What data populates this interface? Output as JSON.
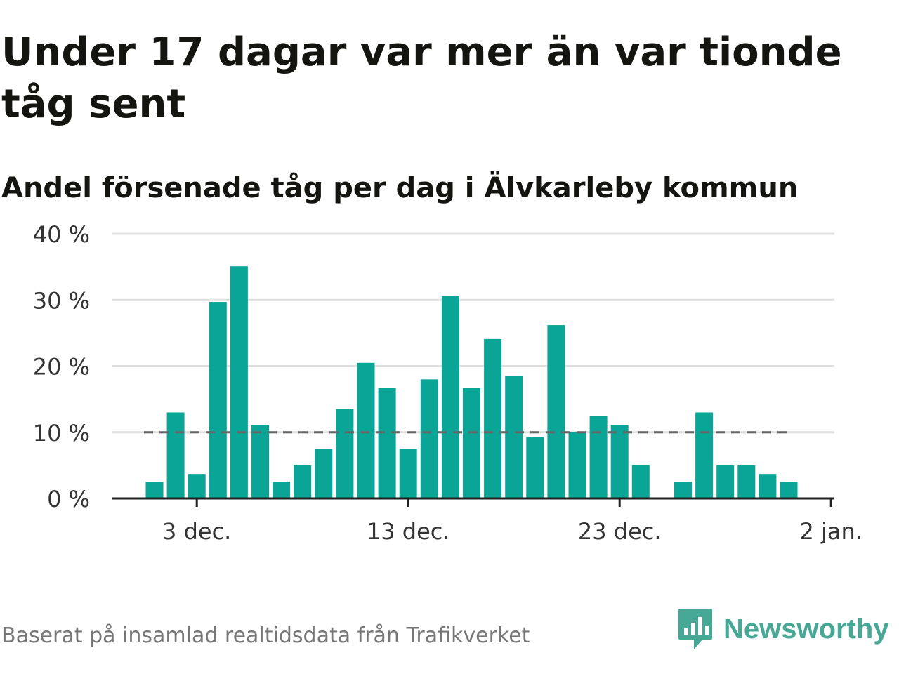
{
  "title": "Under 17 dagar var mer än var tionde tåg sent",
  "subtitle": "Andel försenade tåg per dag i Älvkarleby kommun",
  "source": "Baserat på insamlad realtidsdata från Trafikverket",
  "brand": {
    "name": "Newsworthy",
    "icon": "newsworthy-logo-icon",
    "color": "#46a895"
  },
  "chart_data": {
    "type": "bar",
    "x_start": "2023-12-01",
    "x": [
      "2023-12-01",
      "2023-12-02",
      "2023-12-03",
      "2023-12-04",
      "2023-12-05",
      "2023-12-06",
      "2023-12-07",
      "2023-12-08",
      "2023-12-09",
      "2023-12-10",
      "2023-12-11",
      "2023-12-12",
      "2023-12-13",
      "2023-12-14",
      "2023-12-15",
      "2023-12-16",
      "2023-12-17",
      "2023-12-18",
      "2023-12-19",
      "2023-12-20",
      "2023-12-21",
      "2023-12-22",
      "2023-12-23",
      "2023-12-24",
      "2023-12-25",
      "2023-12-26",
      "2023-12-27",
      "2023-12-28",
      "2023-12-29",
      "2023-12-30",
      "2023-12-31"
    ],
    "values": [
      2.5,
      13,
      3.7,
      29.7,
      35.1,
      11.1,
      2.5,
      5,
      7.5,
      13.5,
      20.5,
      16.7,
      7.5,
      18,
      30.6,
      16.7,
      24.1,
      18.5,
      9.3,
      26.2,
      10,
      12.5,
      11.1,
      5,
      0,
      2.5,
      13,
      5,
      5,
      3.7,
      2.5
    ],
    "ylim": [
      0,
      40
    ],
    "yticks": [
      0,
      10,
      20,
      30,
      40
    ],
    "ytick_labels": [
      "0 %",
      "10 %",
      "20 %",
      "30 %",
      "40 %"
    ],
    "xticks": [
      "2023-12-03",
      "2023-12-13",
      "2023-12-23",
      "2024-01-02"
    ],
    "xtick_labels": [
      "3 dec.",
      "13 dec.",
      "23 dec.",
      "2 jan."
    ],
    "reference_line": {
      "value": 10,
      "style": "dashed"
    },
    "grid": true,
    "bar_color": "#0aa596",
    "grid_color": "#e0e0e0",
    "axis_color": "#222222",
    "reference_color": "#666666"
  }
}
